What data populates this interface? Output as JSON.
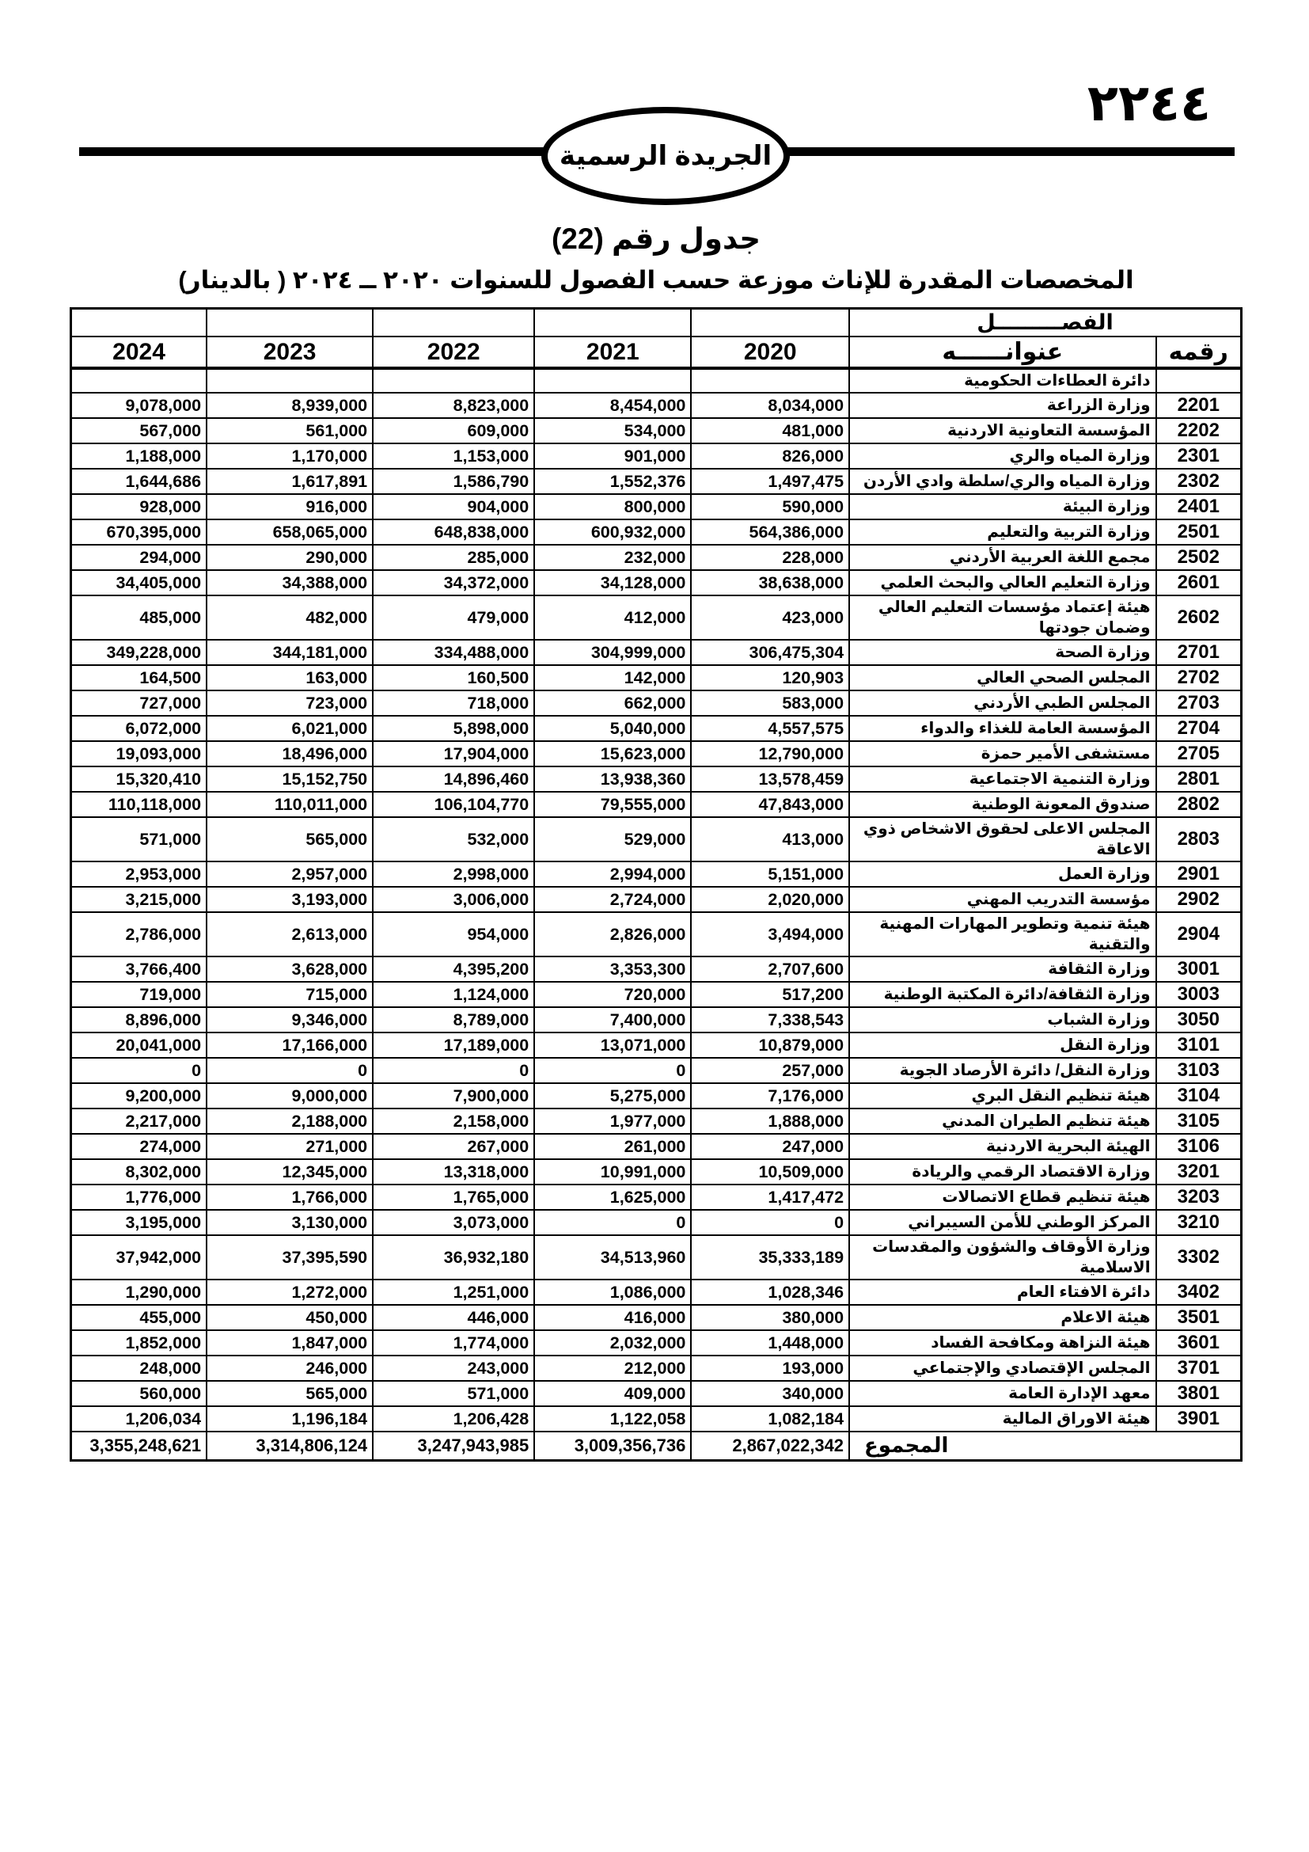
{
  "header": {
    "page_number": "٢٢٤٤",
    "badge_label": "الجريدة الرسمية"
  },
  "title": {
    "line1": "جدول رقم (22)",
    "line2": "المخصصات المقدرة للإناث موزعة حسب الفصول للسنوات ٢٠٢٠ ــ ٢٠٢٤ ( بالدينار)"
  },
  "table": {
    "chapter_label": "الفصـــــــــل",
    "title_label": "عنوانــــــه",
    "code_label": "رقمه",
    "years": [
      "2020",
      "2021",
      "2022",
      "2023",
      "2024"
    ],
    "group_row": {
      "name": "دائرة العطاءات الحكومية"
    },
    "rows": [
      {
        "code": "2201",
        "name": "وزارة الزراعة",
        "y2020": "8,034,000",
        "y2021": "8,454,000",
        "y2022": "8,823,000",
        "y2023": "8,939,000",
        "y2024": "9,078,000"
      },
      {
        "code": "2202",
        "name": "المؤسسة التعاونية الاردنية",
        "y2020": "481,000",
        "y2021": "534,000",
        "y2022": "609,000",
        "y2023": "561,000",
        "y2024": "567,000"
      },
      {
        "code": "2301",
        "name": "وزارة المياه والري",
        "y2020": "826,000",
        "y2021": "901,000",
        "y2022": "1,153,000",
        "y2023": "1,170,000",
        "y2024": "1,188,000"
      },
      {
        "code": "2302",
        "name": "وزارة المياه والري/سلطة وادي الأردن",
        "y2020": "1,497,475",
        "y2021": "1,552,376",
        "y2022": "1,586,790",
        "y2023": "1,617,891",
        "y2024": "1,644,686"
      },
      {
        "code": "2401",
        "name": "وزارة البيئة",
        "y2020": "590,000",
        "y2021": "800,000",
        "y2022": "904,000",
        "y2023": "916,000",
        "y2024": "928,000"
      },
      {
        "code": "2501",
        "name": "وزارة التربية والتعليم",
        "y2020": "564,386,000",
        "y2021": "600,932,000",
        "y2022": "648,838,000",
        "y2023": "658,065,000",
        "y2024": "670,395,000"
      },
      {
        "code": "2502",
        "name": "مجمع اللغة العربية الأردني",
        "y2020": "228,000",
        "y2021": "232,000",
        "y2022": "285,000",
        "y2023": "290,000",
        "y2024": "294,000"
      },
      {
        "code": "2601",
        "name": "وزارة التعليم العالي والبحث العلمي",
        "y2020": "38,638,000",
        "y2021": "34,128,000",
        "y2022": "34,372,000",
        "y2023": "34,388,000",
        "y2024": "34,405,000"
      },
      {
        "code": "2602",
        "name": "هيئة إعتماد مؤسسات التعليم العالي وضمان جودتها",
        "y2020": "423,000",
        "y2021": "412,000",
        "y2022": "479,000",
        "y2023": "482,000",
        "y2024": "485,000"
      },
      {
        "code": "2701",
        "name": "وزارة الصحة",
        "y2020": "306,475,304",
        "y2021": "304,999,000",
        "y2022": "334,488,000",
        "y2023": "344,181,000",
        "y2024": "349,228,000"
      },
      {
        "code": "2702",
        "name": "المجلس الصحي العالي",
        "y2020": "120,903",
        "y2021": "142,000",
        "y2022": "160,500",
        "y2023": "163,000",
        "y2024": "164,500"
      },
      {
        "code": "2703",
        "name": "المجلس الطبي الأردني",
        "y2020": "583,000",
        "y2021": "662,000",
        "y2022": "718,000",
        "y2023": "723,000",
        "y2024": "727,000"
      },
      {
        "code": "2704",
        "name": "المؤسسة العامة للغذاء والدواء",
        "y2020": "4,557,575",
        "y2021": "5,040,000",
        "y2022": "5,898,000",
        "y2023": "6,021,000",
        "y2024": "6,072,000"
      },
      {
        "code": "2705",
        "name": "مستشفى الأمير حمزة",
        "y2020": "12,790,000",
        "y2021": "15,623,000",
        "y2022": "17,904,000",
        "y2023": "18,496,000",
        "y2024": "19,093,000"
      },
      {
        "code": "2801",
        "name": "وزارة التنمية الاجتماعية",
        "y2020": "13,578,459",
        "y2021": "13,938,360",
        "y2022": "14,896,460",
        "y2023": "15,152,750",
        "y2024": "15,320,410"
      },
      {
        "code": "2802",
        "name": "صندوق المعونة الوطنية",
        "y2020": "47,843,000",
        "y2021": "79,555,000",
        "y2022": "106,104,770",
        "y2023": "110,011,000",
        "y2024": "110,118,000"
      },
      {
        "code": "2803",
        "name": "المجلس الاعلى لحقوق الاشخاص ذوي الاعاقة",
        "y2020": "413,000",
        "y2021": "529,000",
        "y2022": "532,000",
        "y2023": "565,000",
        "y2024": "571,000"
      },
      {
        "code": "2901",
        "name": "وزارة العمل",
        "y2020": "5,151,000",
        "y2021": "2,994,000",
        "y2022": "2,998,000",
        "y2023": "2,957,000",
        "y2024": "2,953,000"
      },
      {
        "code": "2902",
        "name": "مؤسسة التدريب المهني",
        "y2020": "2,020,000",
        "y2021": "2,724,000",
        "y2022": "3,006,000",
        "y2023": "3,193,000",
        "y2024": "3,215,000"
      },
      {
        "code": "2904",
        "name": "هيئة تنمية وتطوير المهارات المهنية والتقنية",
        "y2020": "3,494,000",
        "y2021": "2,826,000",
        "y2022": "954,000",
        "y2023": "2,613,000",
        "y2024": "2,786,000"
      },
      {
        "code": "3001",
        "name": "وزارة الثقافة",
        "y2020": "2,707,600",
        "y2021": "3,353,300",
        "y2022": "4,395,200",
        "y2023": "3,628,000",
        "y2024": "3,766,400"
      },
      {
        "code": "3003",
        "name": "وزارة الثقافة/دائرة المكتبة الوطنية",
        "y2020": "517,200",
        "y2021": "720,000",
        "y2022": "1,124,000",
        "y2023": "715,000",
        "y2024": "719,000"
      },
      {
        "code": "3050",
        "name": "وزارة الشباب",
        "y2020": "7,338,543",
        "y2021": "7,400,000",
        "y2022": "8,789,000",
        "y2023": "9,346,000",
        "y2024": "8,896,000"
      },
      {
        "code": "3101",
        "name": "وزارة النقل",
        "y2020": "10,879,000",
        "y2021": "13,071,000",
        "y2022": "17,189,000",
        "y2023": "17,166,000",
        "y2024": "20,041,000"
      },
      {
        "code": "3103",
        "name": "وزارة النقل/ دائرة الأرصاد الجوية",
        "y2020": "257,000",
        "y2021": "0",
        "y2022": "0",
        "y2023": "0",
        "y2024": "0"
      },
      {
        "code": "3104",
        "name": "هيئة تنظيم النقل البري",
        "y2020": "7,176,000",
        "y2021": "5,275,000",
        "y2022": "7,900,000",
        "y2023": "9,000,000",
        "y2024": "9,200,000"
      },
      {
        "code": "3105",
        "name": "هيئة تنظيم الطيران المدني",
        "y2020": "1,888,000",
        "y2021": "1,977,000",
        "y2022": "2,158,000",
        "y2023": "2,188,000",
        "y2024": "2,217,000"
      },
      {
        "code": "3106",
        "name": "الهيئة البحرية الاردنية",
        "y2020": "247,000",
        "y2021": "261,000",
        "y2022": "267,000",
        "y2023": "271,000",
        "y2024": "274,000"
      },
      {
        "code": "3201",
        "name": "وزارة الاقتصاد الرقمي والريادة",
        "y2020": "10,509,000",
        "y2021": "10,991,000",
        "y2022": "13,318,000",
        "y2023": "12,345,000",
        "y2024": "8,302,000"
      },
      {
        "code": "3203",
        "name": "هيئة تنظيم قطاع الاتصالات",
        "y2020": "1,417,472",
        "y2021": "1,625,000",
        "y2022": "1,765,000",
        "y2023": "1,766,000",
        "y2024": "1,776,000"
      },
      {
        "code": "3210",
        "name": "المركز الوطني للأمن السيبراني",
        "y2020": "0",
        "y2021": "0",
        "y2022": "3,073,000",
        "y2023": "3,130,000",
        "y2024": "3,195,000"
      },
      {
        "code": "3302",
        "name": "وزارة الأوقاف والشؤون والمقدسات الاسلامية",
        "y2020": "35,333,189",
        "y2021": "34,513,960",
        "y2022": "36,932,180",
        "y2023": "37,395,590",
        "y2024": "37,942,000"
      },
      {
        "code": "3402",
        "name": "دائرة الافتاء العام",
        "y2020": "1,028,346",
        "y2021": "1,086,000",
        "y2022": "1,251,000",
        "y2023": "1,272,000",
        "y2024": "1,290,000"
      },
      {
        "code": "3501",
        "name": "هيئة الاعلام",
        "y2020": "380,000",
        "y2021": "416,000",
        "y2022": "446,000",
        "y2023": "450,000",
        "y2024": "455,000"
      },
      {
        "code": "3601",
        "name": "هيئة النزاهة ومكافحة الفساد",
        "y2020": "1,448,000",
        "y2021": "2,032,000",
        "y2022": "1,774,000",
        "y2023": "1,847,000",
        "y2024": "1,852,000"
      },
      {
        "code": "3701",
        "name": "المجلس الإقتصادي والإجتماعي",
        "y2020": "193,000",
        "y2021": "212,000",
        "y2022": "243,000",
        "y2023": "246,000",
        "y2024": "248,000"
      },
      {
        "code": "3801",
        "name": "معهد الإدارة العامة",
        "y2020": "340,000",
        "y2021": "409,000",
        "y2022": "571,000",
        "y2023": "565,000",
        "y2024": "560,000"
      },
      {
        "code": "3901",
        "name": "هيئة الاوراق المالية",
        "y2020": "1,082,184",
        "y2021": "1,122,058",
        "y2022": "1,206,428",
        "y2023": "1,196,184",
        "y2024": "1,206,034"
      }
    ],
    "total": {
      "label": "المجموع",
      "y2020": "2,867,022,342",
      "y2021": "3,009,356,736",
      "y2022": "3,247,943,985",
      "y2023": "3,314,806,124",
      "y2024": "3,355,248,621"
    }
  }
}
